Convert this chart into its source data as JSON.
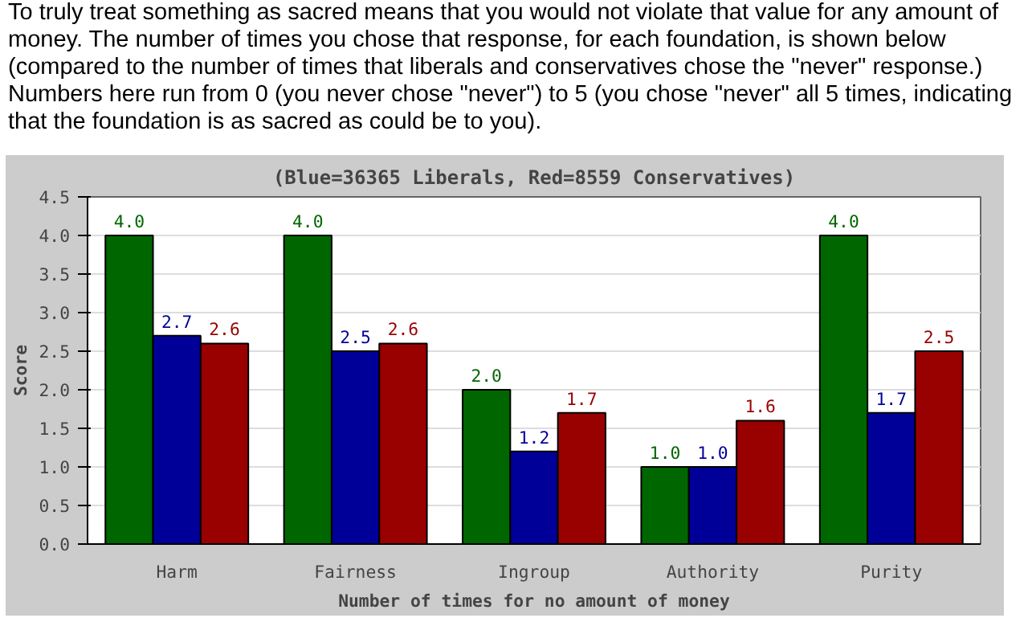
{
  "chart_data": {
    "type": "bar",
    "subtitle": "To truly treat something as sacred means that you would not violate that value for any amount of money. The number of times you chose that response, for each foundation, is shown below (compared to the number of times that liberals and conservatives chose the \"never\" response.) Numbers here run from 0 (you never chose \"never\") to 5 (you chose \"never\" all 5 times, indicating that the foundation is as sacred as could be to you).",
    "title": "(Blue=36365 Liberals, Red=8559 Conservatives)",
    "ylabel": "Score",
    "xlabel": "Number of times for no amount of money",
    "categories": [
      "Harm",
      "Fairness",
      "Ingroup",
      "Authority",
      "Purity"
    ],
    "series": [
      {
        "color": "#006600",
        "values": [
          4.0,
          4.0,
          2.0,
          1.0,
          4.0
        ],
        "value_labels": [
          "4.0",
          "4.0",
          "2.0",
          "1.0",
          "4.0"
        ]
      },
      {
        "color": "#000099",
        "values": [
          2.7,
          2.5,
          1.2,
          1.0,
          1.7
        ],
        "value_labels": [
          "2.7",
          "2.5",
          "1.2",
          "1.0",
          "1.7"
        ]
      },
      {
        "color": "#990000",
        "values": [
          2.6,
          2.6,
          1.7,
          1.6,
          2.5
        ],
        "value_labels": [
          "2.6",
          "2.6",
          "1.7",
          "1.6",
          "2.5"
        ]
      }
    ],
    "ylim": [
      0,
      4.5
    ],
    "yticks": [
      {
        "value": 0,
        "label": "0.0"
      },
      {
        "value": 0.5,
        "label": "0.5"
      },
      {
        "value": 1,
        "label": "1.0"
      },
      {
        "value": 1.5,
        "label": "1.5"
      },
      {
        "value": 2,
        "label": "2.0"
      },
      {
        "value": 2.5,
        "label": "2.5"
      },
      {
        "value": 3,
        "label": "3.0"
      },
      {
        "value": 3.5,
        "label": "3.5"
      },
      {
        "value": 4,
        "label": "4.0"
      },
      {
        "value": 4.5,
        "label": "4.5"
      }
    ],
    "grid": "y"
  }
}
